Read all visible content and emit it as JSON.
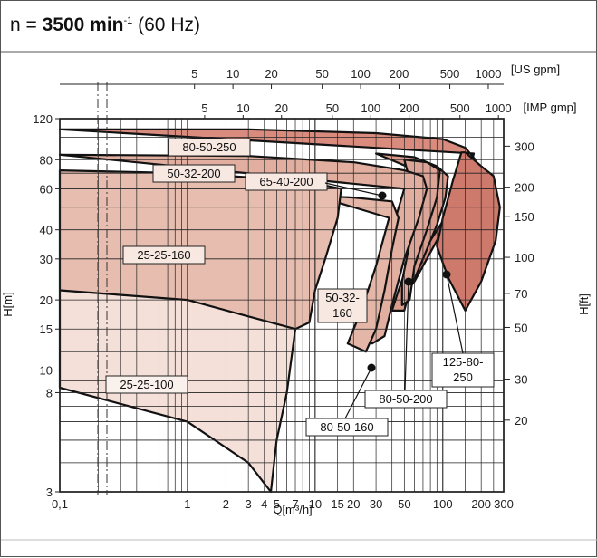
{
  "title": {
    "prefix": "n = ",
    "bold": "3500 min",
    "sup": "-1",
    "suffix": " (60 Hz)"
  },
  "chart_data": {
    "type": "area",
    "title": "n = 3500 min-1 (60 Hz)",
    "x_axis": {
      "label": "Q[m³/h]",
      "scale": "log",
      "range": [
        0.1,
        300
      ],
      "ticks": [
        0.1,
        1,
        2,
        3,
        4,
        5,
        7,
        10,
        15,
        20,
        30,
        50,
        100,
        200,
        300
      ],
      "tick_labels": [
        "0,1",
        "1",
        "2",
        "3",
        "4",
        "5",
        "7",
        "10",
        "15",
        "20",
        "30",
        "50",
        "100",
        "200",
        "300"
      ]
    },
    "y_axis_left": {
      "label": "H[m]",
      "scale": "log",
      "range": [
        3,
        120
      ],
      "ticks": [
        3,
        8,
        10,
        15,
        20,
        30,
        40,
        60,
        80,
        120
      ]
    },
    "y_axis_right": {
      "label": "H[ft]",
      "scale": "log",
      "ticks": [
        20,
        30,
        50,
        70,
        100,
        150,
        200,
        300
      ]
    },
    "top_axis_us": {
      "label": "[US gpm]",
      "ticks": [
        5,
        10,
        20,
        50,
        100,
        200,
        500,
        1000
      ]
    },
    "top_axis_imp": {
      "label": "[IMP gmp]",
      "ticks": [
        5,
        10,
        20,
        50,
        100,
        200,
        500,
        1000
      ]
    },
    "series": [
      {
        "name": "80-50-250",
        "color": "#d98b7e",
        "points": [
          [
            0.1,
            108
          ],
          [
            3,
            108
          ],
          [
            30,
            104
          ],
          [
            100,
            98
          ],
          [
            150,
            90
          ],
          [
            180,
            80
          ],
          [
            140,
            58
          ],
          [
            80,
            36
          ],
          [
            55,
            26
          ],
          [
            45,
            20
          ],
          [
            60,
            24
          ],
          [
            100,
            40
          ],
          [
            150,
            60
          ],
          [
            175,
            85
          ]
        ]
      },
      {
        "name": "125-80-250",
        "color": "#cd7a6c",
        "points": [
          [
            150,
            86
          ],
          [
            200,
            75
          ],
          [
            250,
            68
          ],
          [
            280,
            50
          ],
          [
            260,
            36
          ],
          [
            200,
            24
          ],
          [
            150,
            18
          ],
          [
            110,
            25
          ],
          [
            90,
            34
          ],
          [
            100,
            45
          ],
          [
            120,
            65
          ],
          [
            140,
            86
          ]
        ]
      },
      {
        "name": "65-40-200",
        "color": "#d99c8d",
        "points": [
          [
            30,
            85
          ],
          [
            60,
            82
          ],
          [
            90,
            75
          ],
          [
            110,
            68
          ],
          [
            105,
            55
          ],
          [
            90,
            42
          ],
          [
            70,
            30
          ],
          [
            55,
            22
          ],
          [
            50,
            18
          ],
          [
            40,
            18
          ],
          [
            45,
            22
          ],
          [
            55,
            30
          ],
          [
            65,
            45
          ],
          [
            70,
            70
          ]
        ]
      },
      {
        "name": "80-50-200",
        "color": "#dca597",
        "points": [
          [
            50,
            80
          ],
          [
            75,
            78
          ],
          [
            95,
            72
          ],
          [
            90,
            55
          ],
          [
            75,
            40
          ],
          [
            60,
            28
          ],
          [
            55,
            20
          ],
          [
            48,
            19
          ],
          [
            48,
            24
          ],
          [
            55,
            35
          ],
          [
            60,
            55
          ]
        ]
      },
      {
        "name": "50-32-200",
        "color": "#e1ae9f",
        "points": [
          [
            0.1,
            84
          ],
          [
            3,
            83
          ],
          [
            20,
            78
          ],
          [
            50,
            72
          ],
          [
            70,
            68
          ],
          [
            75,
            60
          ],
          [
            65,
            45
          ],
          [
            50,
            30
          ],
          [
            40,
            19
          ],
          [
            35,
            14
          ],
          [
            28,
            13
          ],
          [
            20,
            15
          ],
          [
            30,
            25
          ],
          [
            40,
            40
          ],
          [
            50,
            60
          ]
        ]
      },
      {
        "name": "50-32-160",
        "color": "#e3b6a8",
        "points": [
          [
            10,
            56
          ],
          [
            20,
            55
          ],
          [
            40,
            53
          ],
          [
            45,
            45
          ],
          [
            40,
            33
          ],
          [
            35,
            22
          ],
          [
            30,
            15
          ],
          [
            25,
            12
          ],
          [
            18,
            13
          ],
          [
            23,
            18
          ],
          [
            30,
            28
          ],
          [
            38,
            45
          ]
        ]
      },
      {
        "name": "25-25-160",
        "color": "#e7bdb0",
        "points": [
          [
            0.1,
            72
          ],
          [
            1,
            70
          ],
          [
            5,
            66
          ],
          [
            12,
            62
          ],
          [
            16,
            60
          ],
          [
            15,
            45
          ],
          [
            12,
            30
          ],
          [
            10,
            22
          ],
          [
            9,
            16
          ],
          [
            7,
            15
          ],
          [
            5,
            15
          ],
          [
            2,
            17
          ],
          [
            0.1,
            22
          ]
        ]
      },
      {
        "name": "25-25-100",
        "color": "#f4e0d8",
        "points": [
          [
            0.1,
            22
          ],
          [
            1,
            20
          ],
          [
            3,
            17
          ],
          [
            7,
            15
          ],
          [
            6,
            8
          ],
          [
            5,
            5
          ],
          [
            4.5,
            3
          ],
          [
            3,
            4
          ],
          [
            1,
            6
          ],
          [
            0.1,
            8.4
          ]
        ]
      }
    ],
    "grid": true
  },
  "axis_titles": {
    "x": "Q[m³/h]",
    "y_left": "H[m]",
    "y_right": "H[ft]",
    "top_us": "[US gpm]",
    "top_imp": "[IMP gmp]"
  },
  "curve_labels": {
    "l_80_50_250": "80-50-250",
    "l_50_32_200": "50-32-200",
    "l_65_40_200": "65-40-200",
    "l_25_25_160": "25-25-160",
    "l_50_32_160_a": "50-32-",
    "l_50_32_160_b": "160",
    "l_25_25_100": "25-25-100",
    "l_125_80_250_a": "125-80-",
    "l_125_80_250_b": "250",
    "l_80_50_200": "80-50-200",
    "l_80_50_160": "80-50-160"
  }
}
